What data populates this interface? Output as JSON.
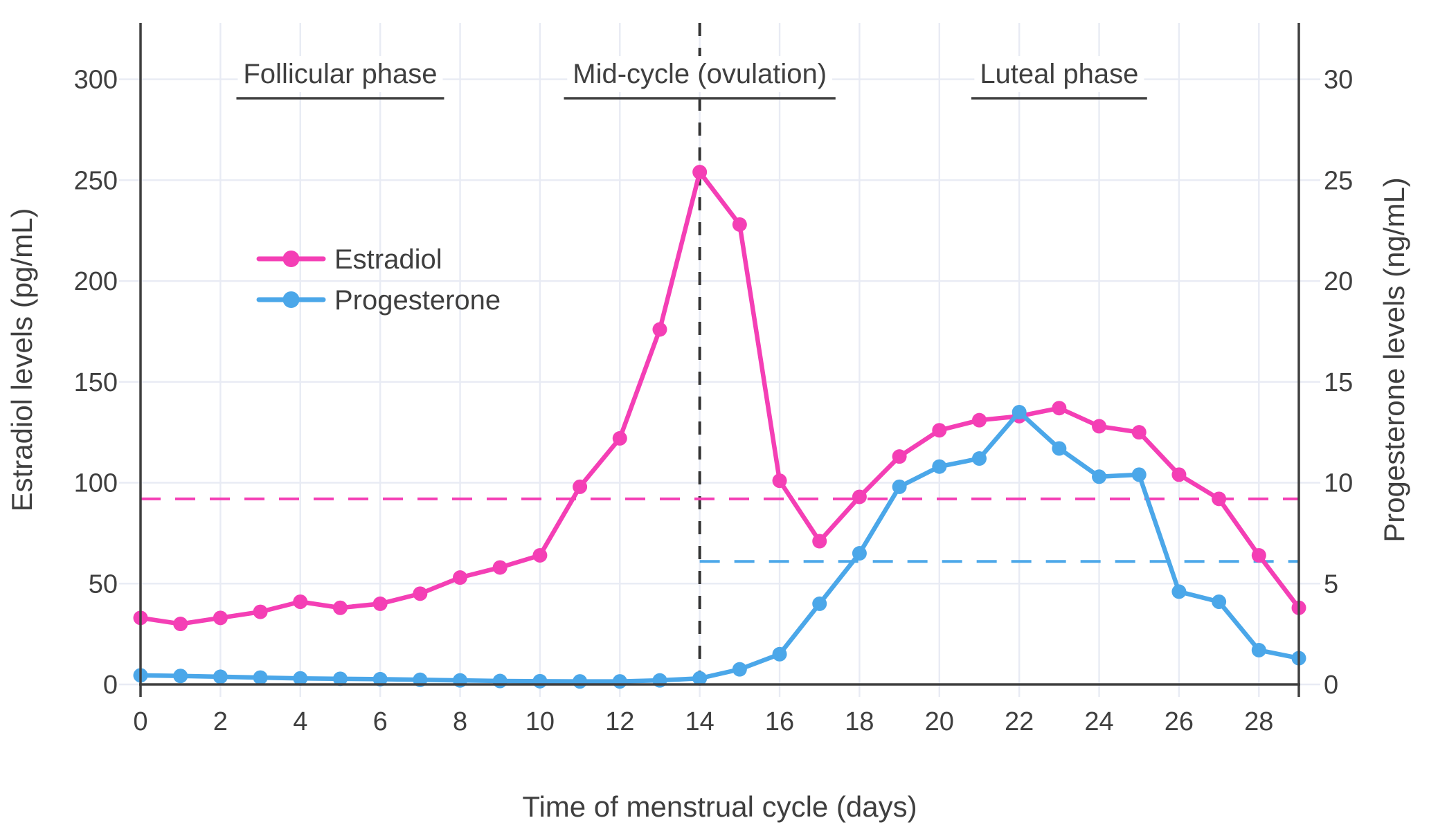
{
  "chart_data": {
    "type": "line",
    "title": "",
    "xlabel": "Time of menstrual cycle (days)",
    "ylabel_left": "Estradiol levels (pg/mL)",
    "ylabel_right": "Progesterone levels (ng/mL)",
    "x": [
      0,
      1,
      2,
      3,
      4,
      5,
      6,
      7,
      8,
      9,
      10,
      11,
      12,
      13,
      14,
      15,
      16,
      17,
      18,
      19,
      20,
      21,
      22,
      23,
      24,
      25,
      26,
      27,
      28,
      29
    ],
    "series": [
      {
        "name": "Estradiol",
        "axis": "left",
        "units": "pg/mL",
        "color": "#f43fb5",
        "values": [
          33,
          30,
          33,
          36,
          41,
          38,
          40,
          45,
          53,
          58,
          64,
          98,
          122,
          176,
          254,
          228,
          101,
          71,
          93,
          113,
          126,
          131,
          133,
          137,
          128,
          125,
          104,
          92,
          64,
          38
        ]
      },
      {
        "name": "Progesterone",
        "axis": "right",
        "units": "ng/mL",
        "color": "#4ba7e9",
        "values": [
          0.45,
          0.42,
          0.38,
          0.34,
          0.3,
          0.28,
          0.26,
          0.23,
          0.2,
          0.17,
          0.16,
          0.15,
          0.15,
          0.2,
          0.3,
          0.75,
          1.5,
          4.0,
          6.5,
          9.8,
          10.8,
          11.2,
          13.5,
          11.7,
          10.3,
          10.4,
          4.6,
          4.1,
          1.7,
          1.3
        ]
      }
    ],
    "x_ticks": [
      0,
      2,
      4,
      6,
      8,
      10,
      12,
      14,
      16,
      18,
      20,
      22,
      24,
      26,
      28
    ],
    "x_range": [
      0,
      29
    ],
    "y_left": {
      "min": 0,
      "max": 328,
      "ticks": [
        0,
        50,
        100,
        150,
        200,
        250,
        300
      ]
    },
    "y_right": {
      "min": 0,
      "max": 32.8,
      "ticks": [
        0,
        5,
        10,
        15,
        20,
        25,
        30
      ]
    },
    "grid": true,
    "legend": {
      "position": "upper-left-inside",
      "entries": [
        "Estradiol",
        "Progesterone"
      ]
    },
    "annotations": [
      {
        "text": "Follicular phase",
        "x_day": 5,
        "underline_days": [
          2.4,
          7.6
        ]
      },
      {
        "text": "Mid-cycle (ovulation)",
        "x_day": 14,
        "underline_days": [
          10.6,
          17.4
        ]
      },
      {
        "text": "Luteal phase",
        "x_day": 23,
        "underline_days": [
          20.8,
          25.2
        ]
      }
    ],
    "reference_lines": [
      {
        "id": "ovulation-day-line",
        "orient": "vertical",
        "x_day": 14,
        "style": "dashed",
        "color": "#333333"
      },
      {
        "id": "estradiol-threshold-line",
        "orient": "horizontal",
        "value": 92,
        "axis": "left",
        "span_days": [
          0,
          29
        ],
        "style": "dashed",
        "color": "#f43fb5"
      },
      {
        "id": "progesterone-threshold-line",
        "orient": "horizontal",
        "value": 6.1,
        "axis": "right",
        "span_days": [
          14,
          29
        ],
        "style": "dashed",
        "color": "#4ba7e9"
      }
    ],
    "colors": {
      "estradiol": "#f43fb5",
      "progesterone": "#4ba7e9",
      "grid": "#e8ebf4",
      "axis": "#3f3f3f",
      "text": "#3f3f3f",
      "ovulation_dash": "#333333",
      "background": "#ffffff"
    }
  }
}
